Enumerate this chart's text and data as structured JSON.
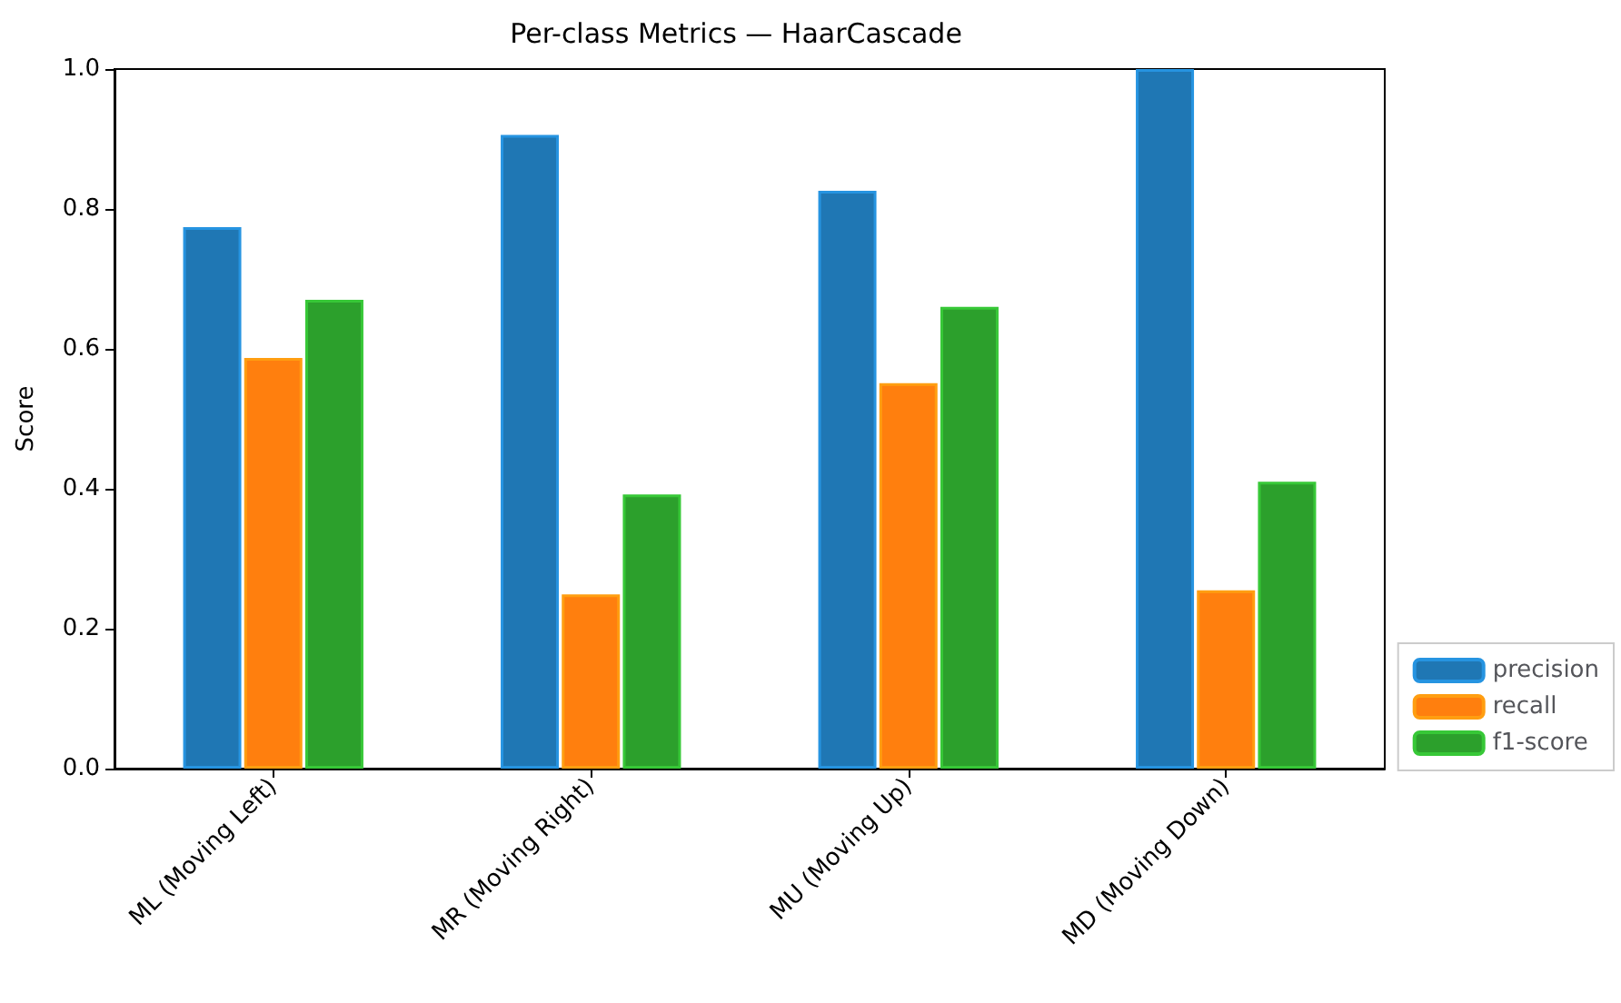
{
  "chart_data": {
    "type": "bar",
    "title": "Per-class Metrics — HaarCascade",
    "ylabel": "Score",
    "categories": [
      "ML (Moving Left)",
      "MR (Moving Right)",
      "MU (Moving Up)",
      "MD (Moving Down)"
    ],
    "series": [
      {
        "name": "precision",
        "color": "#1f77b4",
        "values": [
          0.774,
          0.906,
          0.826,
          1.0
        ]
      },
      {
        "name": "recall",
        "color": "#ff7f0e",
        "values": [
          0.587,
          0.249,
          0.551,
          0.255
        ]
      },
      {
        "name": "f1-score",
        "color": "#2ca02c",
        "values": [
          0.67,
          0.392,
          0.66,
          0.41
        ]
      }
    ],
    "ylim": [
      0,
      1
    ],
    "yticks": [
      {
        "value": 0,
        "label": "0.0"
      },
      {
        "value": 0.2,
        "label": "0.2"
      },
      {
        "value": 0.4,
        "label": "0.4"
      },
      {
        "value": 0.6,
        "label": "0.6"
      },
      {
        "value": 0.8,
        "label": "0.8"
      },
      {
        "value": 1,
        "label": "1.0"
      }
    ],
    "grid": false,
    "legend": "bottom right"
  }
}
